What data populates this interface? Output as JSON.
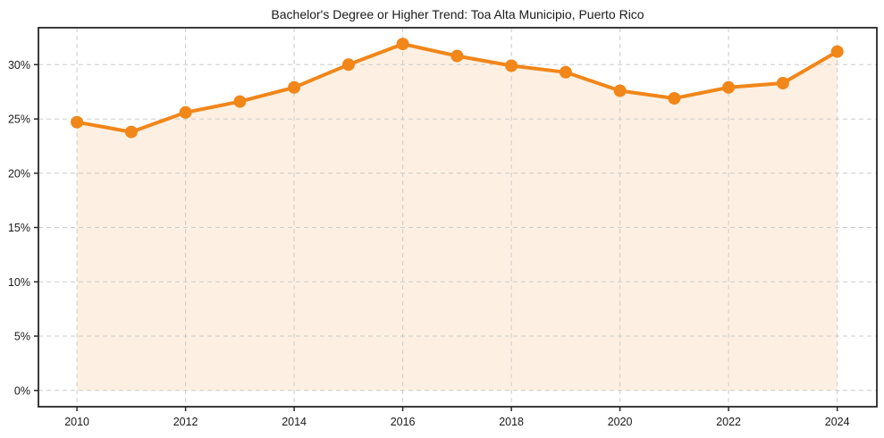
{
  "chart_data": {
    "type": "area",
    "title": "Bachelor's Degree or Higher Trend: Toa Alta Municipio, Puerto Rico",
    "xlabel": "",
    "ylabel": "",
    "series": [
      {
        "name": "Bachelor's Degree or Higher (%)",
        "x": [
          2010,
          2011,
          2012,
          2013,
          2014,
          2015,
          2016,
          2017,
          2018,
          2019,
          2020,
          2021,
          2022,
          2023,
          2024
        ],
        "values": [
          24.7,
          23.8,
          25.6,
          26.6,
          27.9,
          30.0,
          31.9,
          30.8,
          29.9,
          29.3,
          27.6,
          26.9,
          27.9,
          28.3,
          31.2
        ]
      }
    ],
    "xticks": [
      2010,
      2012,
      2014,
      2016,
      2018,
      2020,
      2022,
      2024
    ],
    "xtick_labels": [
      "2010",
      "2012",
      "2014",
      "2016",
      "2018",
      "2020",
      "2022",
      "2024"
    ],
    "yticks": [
      0,
      5,
      10,
      15,
      20,
      25,
      30
    ],
    "ytick_labels": [
      "0%",
      "5%",
      "10%",
      "15%",
      "20%",
      "25%",
      "30%"
    ],
    "xlim": [
      2009.29,
      2024.73
    ],
    "ylim": [
      -1.5,
      33.4
    ],
    "fill_baseline": 0,
    "grid": true,
    "grid_style": "dashed",
    "legend_position": "none",
    "colors": {
      "line": "#f18619",
      "marker": "#f18619",
      "fill": "#fdf0e2",
      "grid": "#cbcbcb",
      "spine": "#262626",
      "text": "#1a1a1a",
      "background": "#ffffff"
    }
  }
}
